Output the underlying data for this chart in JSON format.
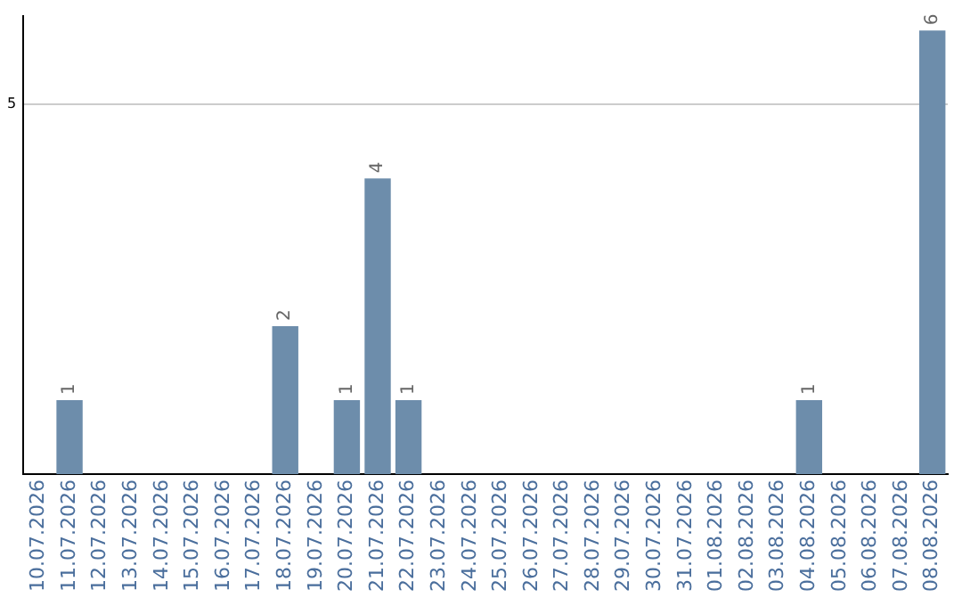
{
  "chart_data": {
    "type": "bar",
    "categories": [
      "10.07.2026",
      "11.07.2026",
      "12.07.2026",
      "13.07.2026",
      "14.07.2026",
      "15.07.2026",
      "16.07.2026",
      "17.07.2026",
      "18.07.2026",
      "19.07.2026",
      "20.07.2026",
      "21.07.2026",
      "22.07.2026",
      "23.07.2026",
      "24.07.2026",
      "25.07.2026",
      "26.07.2026",
      "27.07.2026",
      "28.07.2026",
      "29.07.2026",
      "30.07.2026",
      "31.07.2026",
      "01.08.2026",
      "02.08.2026",
      "03.08.2026",
      "04.08.2026",
      "05.08.2026",
      "06.08.2026",
      "07.08.2026",
      "08.08.2026"
    ],
    "values": [
      0,
      1,
      0,
      0,
      0,
      0,
      0,
      0,
      2,
      0,
      1,
      4,
      1,
      0,
      0,
      0,
      0,
      0,
      0,
      0,
      0,
      0,
      0,
      0,
      0,
      1,
      0,
      0,
      0,
      6
    ],
    "color": "#6d8dab",
    "ylim": [
      0,
      6.2
    ],
    "yticks": [
      5
    ],
    "value_labels": [
      null,
      "1",
      null,
      null,
      null,
      null,
      null,
      null,
      "2",
      null,
      "1",
      "4",
      "1",
      null,
      null,
      null,
      null,
      null,
      null,
      null,
      null,
      null,
      null,
      null,
      null,
      "1",
      null,
      null,
      null,
      "6"
    ],
    "grid": "y",
    "legend": false
  }
}
